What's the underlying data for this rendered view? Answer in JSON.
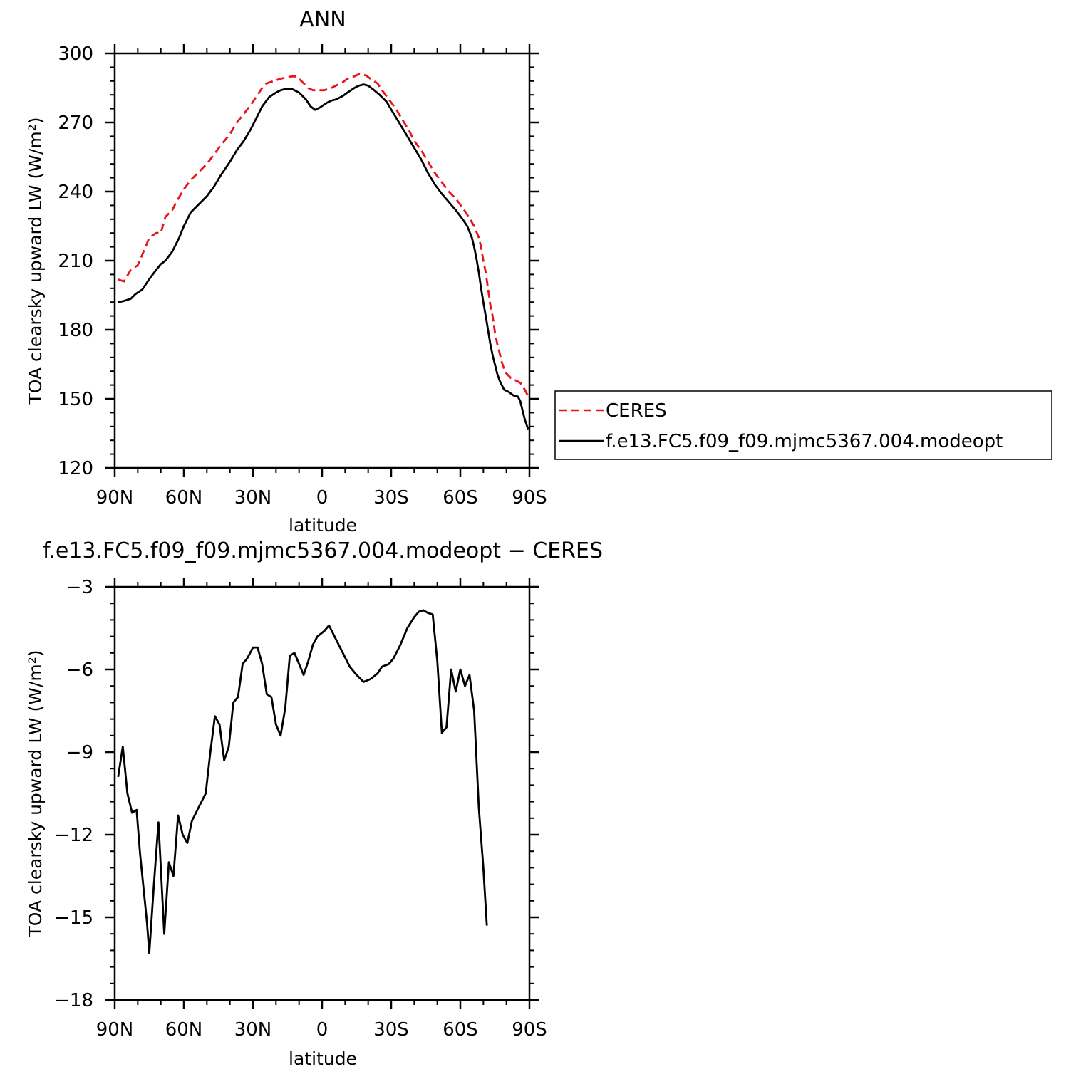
{
  "chart_data": [
    {
      "type": "line",
      "title": "ANN",
      "xlabel": "latitude",
      "ylabel": "TOA clearsky upward LW (W/m²)",
      "xlim": [
        90,
        -90
      ],
      "ylim": [
        120,
        300
      ],
      "xticks": [
        90,
        60,
        30,
        0,
        -30,
        -60,
        -90
      ],
      "xtick_labels": [
        "90N",
        "60N",
        "30N",
        "0",
        "30S",
        "60S",
        "90S"
      ],
      "yticks": [
        120,
        150,
        180,
        210,
        240,
        270,
        300
      ],
      "ytick_labels": [
        "120",
        "150",
        "180",
        "210",
        "240",
        "270",
        "300"
      ],
      "legend_position": "right",
      "series": [
        {
          "name": "CERES",
          "color": "#e8141b",
          "dash": "dashed",
          "points": [
            [
              88.5,
              201.8
            ],
            [
              86,
              201
            ],
            [
              83,
              206
            ],
            [
              80,
              208
            ],
            [
              77,
              215
            ],
            [
              75,
              220
            ],
            [
              72,
              222
            ],
            [
              70,
              222
            ],
            [
              68,
              229
            ],
            [
              65,
              232
            ],
            [
              63,
              236
            ],
            [
              60,
              241
            ],
            [
              57,
              245
            ],
            [
              54,
              248
            ],
            [
              50,
              252
            ],
            [
              47,
              256
            ],
            [
              44,
              260
            ],
            [
              40,
              265
            ],
            [
              37,
              270
            ],
            [
              33,
              275
            ],
            [
              30,
              279
            ],
            [
              28,
              282
            ],
            [
              26,
              285
            ],
            [
              24,
              287
            ],
            [
              21,
              288
            ],
            [
              18,
              289
            ],
            [
              16,
              289.5
            ],
            [
              13,
              290
            ],
            [
              11,
              290
            ],
            [
              9,
              288
            ],
            [
              6,
              285
            ],
            [
              4,
              284
            ],
            [
              1,
              284
            ],
            [
              -1,
              284
            ],
            [
              -4,
              285
            ],
            [
              -6,
              286
            ],
            [
              -9,
              287.5
            ],
            [
              -11,
              289
            ],
            [
              -14,
              290
            ],
            [
              -16,
              291
            ],
            [
              -19,
              290.5
            ],
            [
              -21,
              289
            ],
            [
              -24,
              287
            ],
            [
              -26,
              284
            ],
            [
              -29,
              280
            ],
            [
              -32,
              276
            ],
            [
              -35,
              271
            ],
            [
              -38,
              266
            ],
            [
              -40,
              262
            ],
            [
              -43,
              258
            ],
            [
              -46,
              253
            ],
            [
              -49,
              248
            ],
            [
              -52,
              244
            ],
            [
              -55,
              240
            ],
            [
              -58,
              237
            ],
            [
              -61,
              233
            ],
            [
              -63,
              230
            ],
            [
              -66,
              225
            ],
            [
              -68,
              220
            ],
            [
              -69,
              216
            ],
            [
              -70,
              210
            ],
            [
              -71,
              205
            ],
            [
              -72,
              198
            ],
            [
              -73,
              191
            ],
            [
              -74,
              186
            ],
            [
              -75,
              179
            ],
            [
              -76,
              174
            ],
            [
              -77,
              170
            ],
            [
              -78,
              166
            ],
            [
              -79,
              163
            ],
            [
              -80,
              161
            ],
            [
              -82,
              159
            ],
            [
              -84,
              158
            ],
            [
              -86,
              157
            ],
            [
              -88,
              154
            ],
            [
              -89.5,
              151
            ]
          ]
        },
        {
          "name": "f.e13.FC5.f09_f09.mjmc5367.004.modeopt",
          "color": "#000000",
          "dash": "solid",
          "points": [
            [
              88.5,
              192
            ],
            [
              86,
              192.5
            ],
            [
              83,
              193.5
            ],
            [
              81,
              195.5
            ],
            [
              78,
              197.5
            ],
            [
              75,
              202
            ],
            [
              72,
              206
            ],
            [
              70,
              208.5
            ],
            [
              68,
              210
            ],
            [
              65,
              214
            ],
            [
              62,
              220
            ],
            [
              60,
              225
            ],
            [
              57,
              231
            ],
            [
              54,
              234
            ],
            [
              50,
              238
            ],
            [
              47,
              242
            ],
            [
              44,
              247
            ],
            [
              40,
              253
            ],
            [
              37,
              258
            ],
            [
              34,
              262
            ],
            [
              31,
              267
            ],
            [
              28,
              273
            ],
            [
              26,
              277
            ],
            [
              23,
              281
            ],
            [
              20,
              283
            ],
            [
              18,
              284
            ],
            [
              16,
              284.5
            ],
            [
              13,
              284.5
            ],
            [
              10,
              283
            ],
            [
              7,
              280
            ],
            [
              5,
              277
            ],
            [
              3,
              275.5
            ],
            [
              1,
              276.5
            ],
            [
              -2,
              278.5
            ],
            [
              -4,
              279.5
            ],
            [
              -6,
              280
            ],
            [
              -9,
              281.5
            ],
            [
              -11,
              283
            ],
            [
              -14,
              285
            ],
            [
              -16,
              286
            ],
            [
              -18,
              286.5
            ],
            [
              -20,
              286
            ],
            [
              -22,
              284.5
            ],
            [
              -25,
              282
            ],
            [
              -28,
              279
            ],
            [
              -31,
              274
            ],
            [
              -34,
              269
            ],
            [
              -37,
              264
            ],
            [
              -40,
              259
            ],
            [
              -43,
              254
            ],
            [
              -46,
              248
            ],
            [
              -49,
              243
            ],
            [
              -52,
              239
            ],
            [
              -55,
              235.5
            ],
            [
              -58,
              232
            ],
            [
              -61,
              228
            ],
            [
              -63,
              225
            ],
            [
              -65,
              220
            ],
            [
              -66,
              216
            ],
            [
              -67,
              211
            ],
            [
              -68,
              205
            ],
            [
              -69,
              198
            ],
            [
              -70,
              192
            ],
            [
              -71,
              186
            ],
            [
              -72,
              180
            ],
            [
              -73,
              174
            ],
            [
              -74,
              169
            ],
            [
              -75,
              165
            ],
            [
              -76,
              161
            ],
            [
              -77,
              158
            ],
            [
              -78,
              156
            ],
            [
              -79,
              154
            ],
            [
              -81,
              153
            ],
            [
              -83,
              151.5
            ],
            [
              -85,
              151
            ],
            [
              -86,
              149
            ],
            [
              -87,
              145
            ],
            [
              -88,
              141
            ],
            [
              -89.5,
              136.5
            ]
          ]
        }
      ]
    },
    {
      "type": "line",
      "title": "f.e13.FC5.f09_f09.mjmc5367.004.modeopt − CERES",
      "xlabel": "latitude",
      "ylabel": "TOA clearsky upward LW (W/m²)",
      "xlim": [
        90,
        -90
      ],
      "ylim": [
        -18,
        -3
      ],
      "xticks": [
        90,
        60,
        30,
        0,
        -30,
        -60,
        -90
      ],
      "xtick_labels": [
        "90N",
        "60N",
        "30N",
        "0",
        "30S",
        "60S",
        "90S"
      ],
      "yticks": [
        -18,
        -15,
        -12,
        -9,
        -6,
        -3
      ],
      "ytick_labels": [
        "−18",
        "−15",
        "−12",
        "−9",
        "−6",
        "−3"
      ],
      "series": [
        {
          "color": "#000000",
          "dash": "solid",
          "points": [
            [
              88.5,
              -9.9
            ],
            [
              86.5,
              -8.8
            ],
            [
              84.5,
              -10.5
            ],
            [
              82.5,
              -11.2
            ],
            [
              80.5,
              -11.1
            ],
            [
              79,
              -12.7
            ],
            [
              76,
              -15.2
            ],
            [
              75,
              -16.3
            ],
            [
              73,
              -13.8
            ],
            [
              71,
              -11.55
            ],
            [
              68.5,
              -15.6
            ],
            [
              66.5,
              -13.0
            ],
            [
              64.5,
              -13.5
            ],
            [
              62.5,
              -11.3
            ],
            [
              60.5,
              -12.0
            ],
            [
              58.5,
              -12.3
            ],
            [
              56.5,
              -11.5
            ],
            [
              53.5,
              -11.0
            ],
            [
              50.5,
              -10.5
            ],
            [
              48.5,
              -9.0
            ],
            [
              46.5,
              -7.7
            ],
            [
              44.5,
              -8.0
            ],
            [
              42.5,
              -9.3
            ],
            [
              40.5,
              -8.8
            ],
            [
              38.5,
              -7.2
            ],
            [
              36.5,
              -7.0
            ],
            [
              34.5,
              -5.8
            ],
            [
              32.5,
              -5.6
            ],
            [
              30,
              -5.2
            ],
            [
              28,
              -5.2
            ],
            [
              26,
              -5.8
            ],
            [
              24,
              -6.9
            ],
            [
              22,
              -7.0
            ],
            [
              20,
              -8.0
            ],
            [
              18,
              -8.4
            ],
            [
              16,
              -7.4
            ],
            [
              14,
              -5.5
            ],
            [
              12,
              -5.4
            ],
            [
              10,
              -5.8
            ],
            [
              8,
              -6.2
            ],
            [
              6,
              -5.7
            ],
            [
              4,
              -5.1
            ],
            [
              2,
              -4.8
            ],
            [
              -1,
              -4.6
            ],
            [
              -3,
              -4.4
            ],
            [
              -6,
              -4.9
            ],
            [
              -9,
              -5.4
            ],
            [
              -12,
              -5.9
            ],
            [
              -15,
              -6.2
            ],
            [
              -18,
              -6.45
            ],
            [
              -21,
              -6.35
            ],
            [
              -24,
              -6.15
            ],
            [
              -26,
              -5.9
            ],
            [
              -29,
              -5.8
            ],
            [
              -31,
              -5.6
            ],
            [
              -34,
              -5.1
            ],
            [
              -37,
              -4.5
            ],
            [
              -40,
              -4.1
            ],
            [
              -42,
              -3.9
            ],
            [
              -44,
              -3.85
            ],
            [
              -46,
              -3.95
            ],
            [
              -48,
              -4.0
            ],
            [
              -50,
              -5.7
            ],
            [
              -52,
              -8.3
            ],
            [
              -54,
              -8.1
            ],
            [
              -56,
              -6.0
            ],
            [
              -58,
              -6.8
            ],
            [
              -60,
              -6.0
            ],
            [
              -62,
              -6.6
            ],
            [
              -64,
              -6.2
            ],
            [
              -66,
              -7.5
            ],
            [
              -68,
              -11.0
            ],
            [
              -70,
              -13.2
            ],
            [
              -71.5,
              -15.3
            ]
          ]
        }
      ]
    }
  ]
}
